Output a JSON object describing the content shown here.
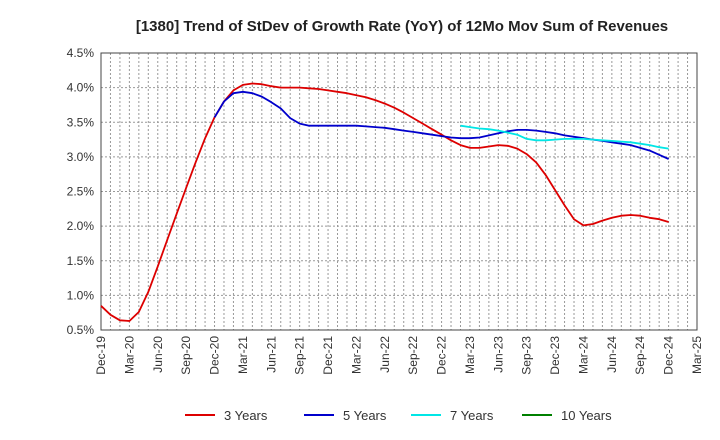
{
  "chart_data": {
    "type": "line",
    "title": "[1380]  Trend of StDev of Growth Rate (YoY) of 12Mo Mov Sum of Revenues",
    "xlabel": "",
    "ylabel": "",
    "ylim": [
      0.5,
      4.5
    ],
    "y_ticks": [
      "0.5%",
      "1.0%",
      "1.5%",
      "2.0%",
      "2.5%",
      "3.0%",
      "3.5%",
      "4.0%",
      "4.5%"
    ],
    "x_ticks": [
      "Dec-19",
      "Mar-20",
      "Jun-20",
      "Sep-20",
      "Dec-20",
      "Mar-21",
      "Jun-21",
      "Sep-21",
      "Dec-21",
      "Mar-22",
      "Jun-22",
      "Sep-22",
      "Dec-22",
      "Mar-23",
      "Jun-23",
      "Sep-23",
      "Dec-23",
      "Mar-24",
      "Jun-24",
      "Sep-24",
      "Dec-24",
      "Mar-25"
    ],
    "x_range_months": [
      0,
      63
    ],
    "grid": true,
    "legend_position": "bottom",
    "series": [
      {
        "name": "3 Years",
        "color": "#dd0000",
        "x": [
          0,
          1,
          2,
          3,
          4,
          5,
          6,
          7,
          8,
          9,
          10,
          11,
          12,
          13,
          14,
          15,
          16,
          17,
          18,
          19,
          20,
          21,
          22,
          23,
          24,
          25,
          26,
          27,
          28,
          29,
          30,
          31,
          32,
          33,
          34,
          35,
          36,
          37,
          38,
          39,
          40,
          41,
          42,
          43,
          44,
          45,
          46,
          47,
          48,
          49,
          50,
          51,
          52,
          53,
          54,
          55,
          56,
          57,
          58,
          59,
          60
        ],
        "values": [
          0.85,
          0.72,
          0.64,
          0.63,
          0.76,
          1.05,
          1.42,
          1.8,
          2.18,
          2.55,
          2.92,
          3.27,
          3.57,
          3.8,
          3.96,
          4.04,
          4.06,
          4.05,
          4.02,
          4.0,
          4.0,
          4.0,
          3.99,
          3.98,
          3.96,
          3.94,
          3.92,
          3.89,
          3.86,
          3.82,
          3.77,
          3.71,
          3.64,
          3.56,
          3.48,
          3.4,
          3.32,
          3.24,
          3.17,
          3.13,
          3.13,
          3.15,
          3.17,
          3.16,
          3.12,
          3.04,
          2.92,
          2.74,
          2.52,
          2.3,
          2.1,
          2.01,
          2.03,
          2.08,
          2.12,
          2.15,
          2.16,
          2.15,
          2.12,
          2.1,
          2.06
        ]
      },
      {
        "name": "5 Years",
        "color": "#0000cc",
        "x": [
          12,
          13,
          14,
          15,
          16,
          17,
          18,
          19,
          20,
          21,
          22,
          23,
          24,
          25,
          26,
          27,
          28,
          29,
          30,
          31,
          32,
          33,
          34,
          35,
          36,
          37,
          38,
          39,
          40,
          41,
          42,
          43,
          44,
          45,
          46,
          47,
          48,
          49,
          50,
          51,
          52,
          53,
          54,
          55,
          56,
          57,
          58,
          59,
          60
        ],
        "values": [
          3.57,
          3.8,
          3.92,
          3.94,
          3.92,
          3.87,
          3.79,
          3.7,
          3.56,
          3.48,
          3.45,
          3.45,
          3.45,
          3.45,
          3.45,
          3.45,
          3.44,
          3.43,
          3.42,
          3.4,
          3.38,
          3.36,
          3.34,
          3.32,
          3.3,
          3.28,
          3.27,
          3.27,
          3.28,
          3.31,
          3.34,
          3.37,
          3.39,
          3.39,
          3.38,
          3.36,
          3.34,
          3.31,
          3.29,
          3.27,
          3.25,
          3.23,
          3.21,
          3.19,
          3.17,
          3.13,
          3.09,
          3.03,
          2.97
        ]
      },
      {
        "name": "7 Years",
        "color": "#00e6e6",
        "x": [
          38,
          39,
          40,
          41,
          42,
          43,
          44,
          45,
          46,
          47,
          48,
          49,
          50,
          51,
          52,
          53,
          54,
          55,
          56,
          57,
          58,
          59,
          60
        ],
        "values": [
          3.45,
          3.43,
          3.41,
          3.4,
          3.38,
          3.35,
          3.32,
          3.26,
          3.24,
          3.24,
          3.25,
          3.26,
          3.26,
          3.26,
          3.25,
          3.24,
          3.23,
          3.22,
          3.21,
          3.19,
          3.17,
          3.14,
          3.12
        ]
      },
      {
        "name": "10 Years",
        "color": "#008000",
        "x": [],
        "values": []
      }
    ]
  }
}
